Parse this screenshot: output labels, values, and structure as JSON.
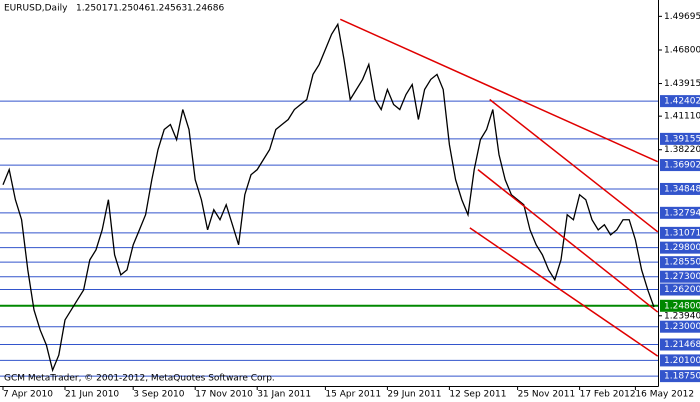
{
  "chart_data": {
    "type": "line",
    "symbol": "EURUSD,Daily",
    "ohlc": [
      1.25017,
      1.25046,
      1.24563,
      1.24686
    ],
    "footer": "GCM MetaTrader, © 2001-2012, MetaQuotes Software Corp.",
    "categories": [
      "7 Apr 2010",
      null,
      null,
      null,
      null,
      null,
      null,
      null,
      null,
      null,
      "21 Jun 2010",
      null,
      null,
      null,
      null,
      null,
      null,
      null,
      null,
      null,
      null,
      "3 Sep 2010",
      null,
      null,
      null,
      null,
      null,
      null,
      null,
      null,
      null,
      "17 Nov 2010",
      null,
      null,
      null,
      null,
      null,
      null,
      null,
      null,
      null,
      "31 Jan 2011",
      null,
      null,
      null,
      null,
      null,
      null,
      null,
      null,
      null,
      null,
      "15 Apr 2011",
      null,
      null,
      null,
      null,
      null,
      null,
      null,
      null,
      null,
      "29 Jun 2011",
      null,
      null,
      null,
      null,
      null,
      null,
      null,
      null,
      null,
      "12 Sep 2011",
      null,
      null,
      null,
      null,
      null,
      null,
      null,
      null,
      null,
      null,
      "25 Nov 2011",
      null,
      null,
      null,
      null,
      null,
      null,
      null,
      null,
      null,
      "17 Feb 2012",
      null,
      null,
      null,
      null,
      null,
      null,
      null,
      null,
      "16 May 2012",
      null,
      null,
      null
    ],
    "series": [
      {
        "name": "EURUSD",
        "color": "#000000",
        "values": [
          1.3521,
          1.3651,
          1.3392,
          1.322,
          1.2789,
          1.2444,
          1.2271,
          1.2142,
          1.1926,
          1.2056,
          1.2358,
          1.2444,
          1.253,
          1.2616,
          1.2875,
          1.2961,
          1.3133,
          1.3392,
          1.2918,
          1.2746,
          1.2789,
          1.3004,
          1.3133,
          1.3263,
          1.3564,
          1.3823,
          1.3996,
          1.4039,
          1.3909,
          1.4168,
          1.3996,
          1.3564,
          1.3392,
          1.3133,
          1.3306,
          1.322,
          1.3349,
          1.3177,
          1.3004,
          1.3435,
          1.3607,
          1.3651,
          1.3737,
          1.3823,
          1.3996,
          1.4039,
          1.4082,
          1.4168,
          1.4211,
          1.4254,
          1.447,
          1.4556,
          1.4685,
          1.4815,
          1.4901,
          1.4599,
          1.4254,
          1.434,
          1.4427,
          1.4556,
          1.4254,
          1.4168,
          1.434,
          1.4211,
          1.4168,
          1.4297,
          1.4383,
          1.4082,
          1.434,
          1.4427,
          1.447,
          1.434,
          1.3866,
          1.3564,
          1.3392,
          1.3263,
          1.3651,
          1.3909,
          1.3996,
          1.4168,
          1.378,
          1.3564,
          1.3435,
          1.3392,
          1.3349,
          1.3133,
          1.3004,
          1.2918,
          1.2789,
          1.2703,
          1.2875,
          1.3263,
          1.322,
          1.3435,
          1.3392,
          1.322,
          1.3133,
          1.3177,
          1.309,
          1.3133,
          1.322,
          1.322,
          1.3047,
          1.2789,
          1.2616,
          1.24686
        ]
      }
    ],
    "ylim": [
      1.179,
      1.511
    ],
    "yticks": [
      {
        "value": 1.49695,
        "label": "1.49695"
      },
      {
        "value": 1.468,
        "label": "1.46800"
      },
      {
        "value": 1.43915,
        "label": "1.43915"
      },
      {
        "value": 1.4111,
        "label": "1.41110"
      },
      {
        "value": 1.3822,
        "label": "1.38220"
      },
      {
        "value": 1.2394,
        "label": "1.23940"
      }
    ],
    "levels": [
      {
        "value": 1.42402,
        "label": "1.42402"
      },
      {
        "value": 1.39155,
        "label": "1.39155"
      },
      {
        "value": 1.36902,
        "label": "1.36902"
      },
      {
        "value": 1.34848,
        "label": "1.34848"
      },
      {
        "value": 1.32794,
        "label": "1.32794"
      },
      {
        "value": 1.31071,
        "label": "1.31071"
      },
      {
        "value": 1.298,
        "label": "1.29800"
      },
      {
        "value": 1.2855,
        "label": "1.28550"
      },
      {
        "value": 1.273,
        "label": "1.27300"
      },
      {
        "value": 1.262,
        "label": "1.26200"
      },
      {
        "value": 1.23,
        "label": "1.23000"
      },
      {
        "value": 1.21468,
        "label": "1.21468"
      },
      {
        "value": 1.201,
        "label": "1.20100"
      },
      {
        "value": 1.1875,
        "label": "1.18750"
      }
    ],
    "level_color": "#3355cc",
    "support": {
      "value": 1.248,
      "label": "1.24800",
      "color": "#008800"
    },
    "trendline_color": "#e00000",
    "trendlines": [
      {
        "x": [
          54.4,
          105.6
        ],
        "y": [
          1.4944,
          1.3719
        ]
      },
      {
        "x": [
          78.5,
          105.6
        ],
        "y": [
          1.4254,
          1.3116
        ]
      },
      {
        "x": [
          76.6,
          105.6
        ],
        "y": [
          1.3651,
          1.2426
        ]
      },
      {
        "x": [
          75.3,
          105.6
        ],
        "y": [
          1.315,
          1.2047
        ]
      }
    ]
  }
}
